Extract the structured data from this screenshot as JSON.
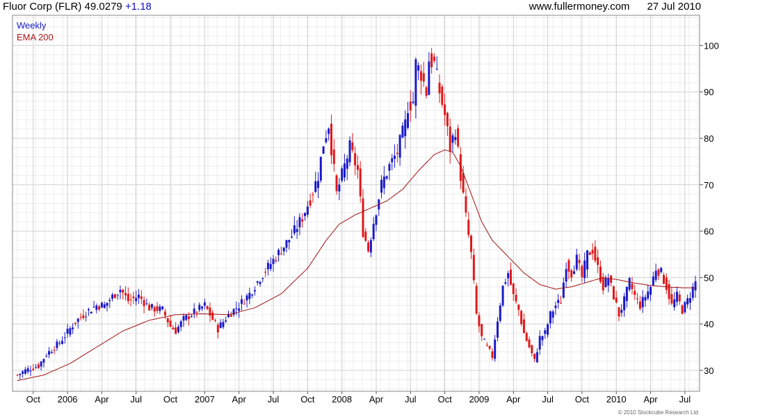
{
  "header": {
    "symbol": "Fluor Corp (FLR)",
    "price": "49.0279",
    "change": "+1.18",
    "site": "www.fullermoney.com",
    "date": "27 Jul 2010"
  },
  "legend": {
    "period": "Weekly",
    "indicator": "EMA 200"
  },
  "credit": "© 2010 Stockcube Research Ltd",
  "colors": {
    "up": "#1a1ac8",
    "down": "#e01818",
    "ema": "#a01010",
    "grid": "#dddddd"
  },
  "chart_data": {
    "type": "candlestick",
    "y_axis": {
      "ticks": [
        30,
        40,
        50,
        60,
        70,
        80,
        90,
        100
      ],
      "ylim": [
        25.5,
        106.5
      ],
      "position": "right"
    },
    "x_axis": {
      "labels": [
        "Oct",
        "2006",
        "Apr",
        "Jul",
        "Oct",
        "2007",
        "Apr",
        "Jul",
        "Oct",
        "2008",
        "Apr",
        "Jul",
        "Oct",
        "2009",
        "Apr",
        "Jul",
        "Oct",
        "2010",
        "Apr",
        "Jul"
      ],
      "tick_weeks": [
        6,
        19,
        32,
        45,
        58,
        71,
        84,
        97,
        110,
        123,
        136,
        149,
        162,
        175,
        188,
        201,
        214,
        227,
        240,
        253
      ]
    },
    "grid": true,
    "weeks": 258,
    "price_anchors": [
      [
        0,
        29.0
      ],
      [
        3,
        30.0
      ],
      [
        8,
        31.0
      ],
      [
        11,
        33.5
      ],
      [
        16,
        36.0
      ],
      [
        22,
        40.5
      ],
      [
        26,
        42.5
      ],
      [
        30,
        44.0
      ],
      [
        33,
        44.0
      ],
      [
        37,
        46.5
      ],
      [
        39,
        47.5
      ],
      [
        42,
        45.0
      ],
      [
        46,
        46.0
      ],
      [
        50,
        43.5
      ],
      [
        55,
        43.0
      ],
      [
        58,
        39.5
      ],
      [
        60,
        38.5
      ],
      [
        63,
        41.0
      ],
      [
        67,
        42.5
      ],
      [
        71,
        44.0
      ],
      [
        74,
        41.0
      ],
      [
        76,
        39.0
      ],
      [
        80,
        42.0
      ],
      [
        84,
        44.0
      ],
      [
        88,
        46.5
      ],
      [
        92,
        50.0
      ],
      [
        96,
        53.0
      ],
      [
        100,
        56.0
      ],
      [
        104,
        59.0
      ],
      [
        108,
        63.0
      ],
      [
        111,
        67.0
      ],
      [
        114,
        72.0
      ],
      [
        116,
        79.0
      ],
      [
        118,
        83.0
      ],
      [
        121,
        68.0
      ],
      [
        123,
        72.0
      ],
      [
        126,
        78.0
      ],
      [
        129,
        73.0
      ],
      [
        131,
        60.0
      ],
      [
        133,
        56.0
      ],
      [
        135,
        62.0
      ],
      [
        138,
        70.0
      ],
      [
        141,
        74.0
      ],
      [
        144,
        77.0
      ],
      [
        147,
        83.0
      ],
      [
        148,
        87.0
      ],
      [
        150,
        88.0
      ],
      [
        151,
        96.0
      ],
      [
        153,
        94.0
      ],
      [
        155,
        90.0
      ],
      [
        156,
        97.0
      ],
      [
        158,
        96.0
      ],
      [
        160,
        90.0
      ],
      [
        162,
        85.0
      ],
      [
        164,
        78.0
      ],
      [
        166,
        82.0
      ],
      [
        168,
        72.0
      ],
      [
        170,
        63.0
      ],
      [
        172,
        55.0
      ],
      [
        174,
        42.0
      ],
      [
        176,
        37.0
      ],
      [
        178,
        35.0
      ],
      [
        180,
        33.0
      ],
      [
        182,
        41.0
      ],
      [
        184,
        48.0
      ],
      [
        186,
        51.0
      ],
      [
        188,
        46.0
      ],
      [
        190,
        43.0
      ],
      [
        192,
        38.0
      ],
      [
        194,
        35.0
      ],
      [
        196,
        32.0
      ],
      [
        198,
        37.0
      ],
      [
        200,
        38.0
      ],
      [
        202,
        42.0
      ],
      [
        204,
        44.0
      ],
      [
        206,
        45.0
      ],
      [
        208,
        53.0
      ],
      [
        210,
        51.0
      ],
      [
        212,
        54.0
      ],
      [
        214,
        50.0
      ],
      [
        216,
        55.0
      ],
      [
        218,
        56.0
      ],
      [
        220,
        52.0
      ],
      [
        222,
        48.0
      ],
      [
        224,
        50.0
      ],
      [
        226,
        46.0
      ],
      [
        228,
        42.0
      ],
      [
        230,
        45.0
      ],
      [
        232,
        49.0
      ],
      [
        234,
        46.0
      ],
      [
        236,
        44.0
      ],
      [
        238,
        46.0
      ],
      [
        240,
        48.0
      ],
      [
        242,
        52.0
      ],
      [
        244,
        51.0
      ],
      [
        246,
        48.0
      ],
      [
        248,
        44.0
      ],
      [
        250,
        46.0
      ],
      [
        252,
        43.0
      ],
      [
        254,
        45.0
      ],
      [
        257,
        49.03
      ]
    ],
    "ema_anchors": [
      [
        0,
        27.8
      ],
      [
        10,
        29.0
      ],
      [
        20,
        31.5
      ],
      [
        30,
        35.0
      ],
      [
        40,
        38.5
      ],
      [
        50,
        40.8
      ],
      [
        60,
        42.0
      ],
      [
        70,
        42.2
      ],
      [
        80,
        42.0
      ],
      [
        90,
        43.5
      ],
      [
        100,
        46.5
      ],
      [
        110,
        52.0
      ],
      [
        117,
        58.0
      ],
      [
        122,
        61.5
      ],
      [
        128,
        63.5
      ],
      [
        134,
        65.0
      ],
      [
        140,
        66.5
      ],
      [
        146,
        69.0
      ],
      [
        152,
        73.0
      ],
      [
        158,
        76.5
      ],
      [
        162,
        77.5
      ],
      [
        165,
        77.0
      ],
      [
        168,
        74.0
      ],
      [
        172,
        68.0
      ],
      [
        176,
        62.0
      ],
      [
        180,
        58.0
      ],
      [
        186,
        54.5
      ],
      [
        192,
        51.0
      ],
      [
        198,
        48.5
      ],
      [
        204,
        47.5
      ],
      [
        210,
        48.0
      ],
      [
        216,
        49.0
      ],
      [
        222,
        50.0
      ],
      [
        228,
        49.5
      ],
      [
        234,
        48.8
      ],
      [
        240,
        48.3
      ],
      [
        246,
        48.0
      ],
      [
        252,
        47.8
      ],
      [
        257,
        47.8
      ]
    ],
    "series": [
      {
        "name": "Weekly",
        "kind": "ohlc"
      },
      {
        "name": "EMA 200",
        "kind": "line"
      }
    ]
  }
}
